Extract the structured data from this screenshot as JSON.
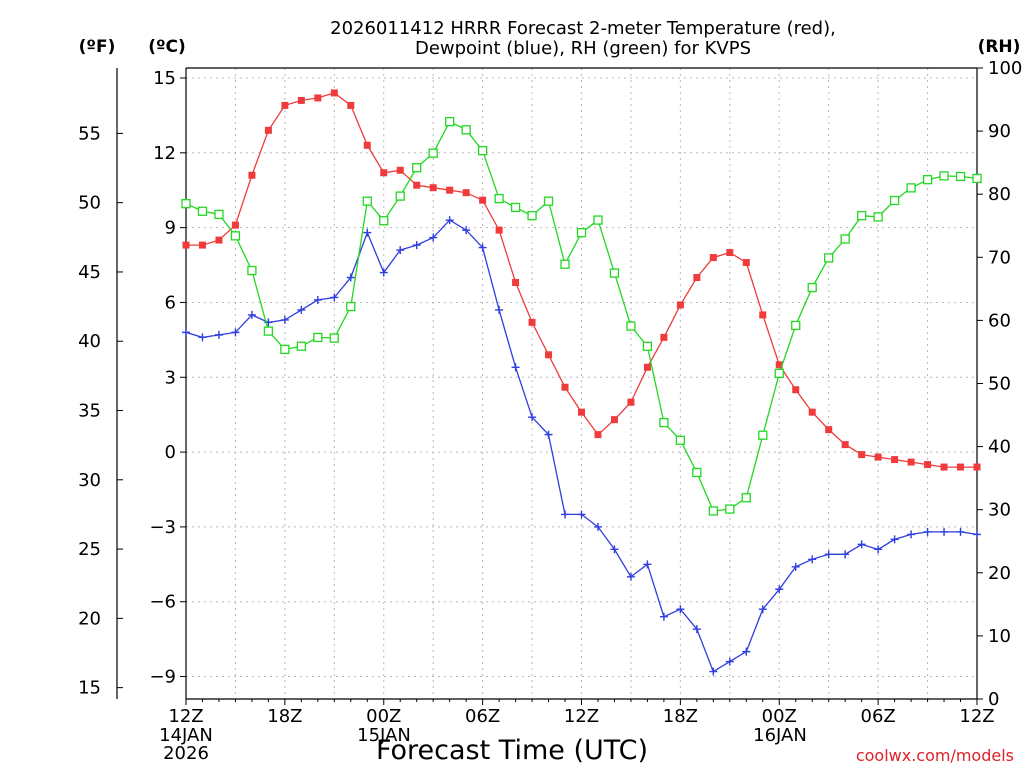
{
  "colors": {
    "temperature": "#ef3b3b",
    "dewpoint": "#2f3ee0",
    "rh": "#22d822",
    "grid": "#b8b8b8",
    "axis": "#000000",
    "credit": "#e0202a"
  },
  "header": {
    "title_line1": "2026011412 HRRR Forecast 2-meter Temperature (red),",
    "title_line2": "Dewpoint (blue), RH (green) for KVPS"
  },
  "axes": {
    "unit_f": "(ºF)",
    "unit_c": "(ºC)",
    "unit_rh": "(RH)",
    "xlabel": "Forecast Time (UTC)",
    "date_label_1": "14JAN",
    "year_label": "2026",
    "date_label_2": "15JAN",
    "date_label_3": "16JAN"
  },
  "footer": {
    "credit": "coolwx.com/models"
  },
  "chart_data": {
    "type": "line",
    "title": "2026011412 HRRR Forecast 2-meter Temperature (red), Dewpoint (blue), RH (green) for KVPS",
    "xlabel": "Forecast Time (UTC)",
    "x_unit": "forecast hour from 2026-01-14 12Z",
    "x": [
      0,
      1,
      2,
      3,
      4,
      5,
      6,
      7,
      8,
      9,
      10,
      11,
      12,
      13,
      14,
      15,
      16,
      17,
      18,
      19,
      20,
      21,
      22,
      23,
      24,
      25,
      26,
      27,
      28,
      29,
      30,
      31,
      32,
      33,
      34,
      35,
      36,
      37,
      38,
      39,
      40,
      41,
      42,
      43,
      44,
      45,
      46,
      47,
      48
    ],
    "xlim": [
      0,
      48
    ],
    "x_ticks": [
      0,
      6,
      12,
      18,
      24,
      30,
      36,
      42,
      48
    ],
    "x_tick_labels": [
      "12Z",
      "18Z",
      "00Z",
      "06Z",
      "12Z",
      "18Z",
      "00Z",
      "06Z",
      "12Z"
    ],
    "ylim_c": [
      -9.9,
      15.4
    ],
    "yticks_c": [
      -9,
      -6,
      -3,
      0,
      3,
      6,
      9,
      12,
      15
    ],
    "ytick_labels_c": [
      "-9",
      "-6",
      "-3",
      "0",
      "3",
      "6",
      "9",
      "12",
      "15"
    ],
    "yticks_f": [
      15,
      20,
      25,
      30,
      35,
      40,
      45,
      50,
      55
    ],
    "ytick_labels_f": [
      "15",
      "20",
      "25",
      "30",
      "35",
      "40",
      "45",
      "50",
      "55"
    ],
    "ylim_rh": [
      0,
      100
    ],
    "yticks_rh": [
      0,
      10,
      20,
      30,
      40,
      50,
      60,
      70,
      80,
      90,
      100
    ],
    "ytick_labels_rh": [
      "0",
      "10",
      "20",
      "30",
      "40",
      "50",
      "60",
      "70",
      "80",
      "90",
      "100"
    ],
    "grid": true,
    "series": [
      {
        "name": "Temperature",
        "unit": "C",
        "axis": "left",
        "marker": "filled-square",
        "values": [
          8.3,
          8.3,
          8.5,
          9.1,
          11.1,
          12.9,
          13.9,
          14.1,
          14.2,
          14.4,
          13.9,
          12.3,
          11.2,
          11.3,
          10.7,
          10.6,
          10.5,
          10.4,
          10.1,
          8.9,
          6.8,
          5.2,
          3.9,
          2.6,
          1.6,
          0.7,
          1.3,
          2.0,
          3.4,
          4.6,
          5.9,
          7.0,
          7.8,
          8.0,
          7.6,
          5.5,
          3.5,
          2.5,
          1.6,
          0.9,
          0.3,
          -0.1,
          -0.2,
          -0.3,
          -0.4,
          -0.5,
          -0.6,
          -0.6,
          -0.6
        ]
      },
      {
        "name": "Dewpoint",
        "unit": "C",
        "axis": "left",
        "marker": "plus",
        "values": [
          4.8,
          4.6,
          4.7,
          4.8,
          5.5,
          5.2,
          5.3,
          5.7,
          6.1,
          6.2,
          7.0,
          8.8,
          7.2,
          8.1,
          8.3,
          8.6,
          9.3,
          8.9,
          8.2,
          5.7,
          3.4,
          1.4,
          0.7,
          -2.5,
          -2.5,
          -3.0,
          -3.9,
          -5.0,
          -4.5,
          -6.6,
          -6.3,
          -7.1,
          -8.8,
          -8.4,
          -8.0,
          -6.3,
          -5.5,
          -4.6,
          -4.3,
          -4.1,
          -4.1,
          -3.7,
          -3.9,
          -3.5,
          -3.3,
          -3.2,
          -3.2,
          -3.2,
          -3.3
        ]
      },
      {
        "name": "RH",
        "unit": "%",
        "axis": "right",
        "marker": "open-square",
        "values": [
          78.5,
          77.3,
          76.8,
          73.4,
          67.9,
          58.3,
          55.4,
          55.9,
          57.3,
          57.2,
          62.2,
          78.9,
          75.8,
          79.7,
          84.2,
          86.5,
          91.5,
          90.2,
          86.9,
          79.3,
          77.9,
          76.6,
          78.9,
          68.9,
          73.9,
          75.9,
          67.5,
          59.1,
          55.9,
          43.8,
          41.0,
          35.9,
          29.8,
          30.1,
          31.9,
          41.8,
          51.6,
          59.2,
          65.2,
          69.9,
          72.9,
          76.6,
          76.4,
          79.0,
          81.0,
          82.3,
          82.9,
          82.8,
          82.5
        ]
      }
    ]
  }
}
